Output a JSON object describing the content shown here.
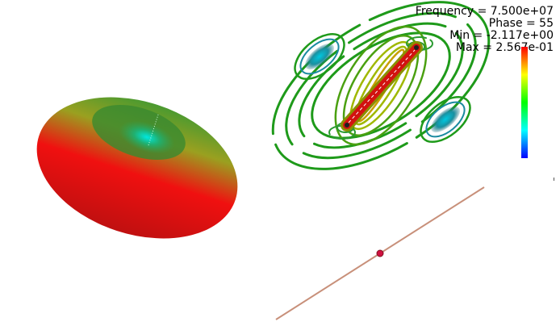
{
  "readout": {
    "frequency": "Frequency = 7.500e+07",
    "phase": "Phase = 55",
    "min": "Min = -2.117e+00",
    "max": "Max = 2.567e-01"
  },
  "colorbar": {
    "stops": [
      "#ff0000",
      "#ffff00",
      "#00ff00",
      "#00ffff",
      "#0000ff"
    ]
  },
  "colors": {
    "background": "#ffffff",
    "antenna_line": "#c8907a",
    "feed_point": "#d01040",
    "contour_outer": "#1e9a1a",
    "contour_inner": "#a0b800"
  }
}
